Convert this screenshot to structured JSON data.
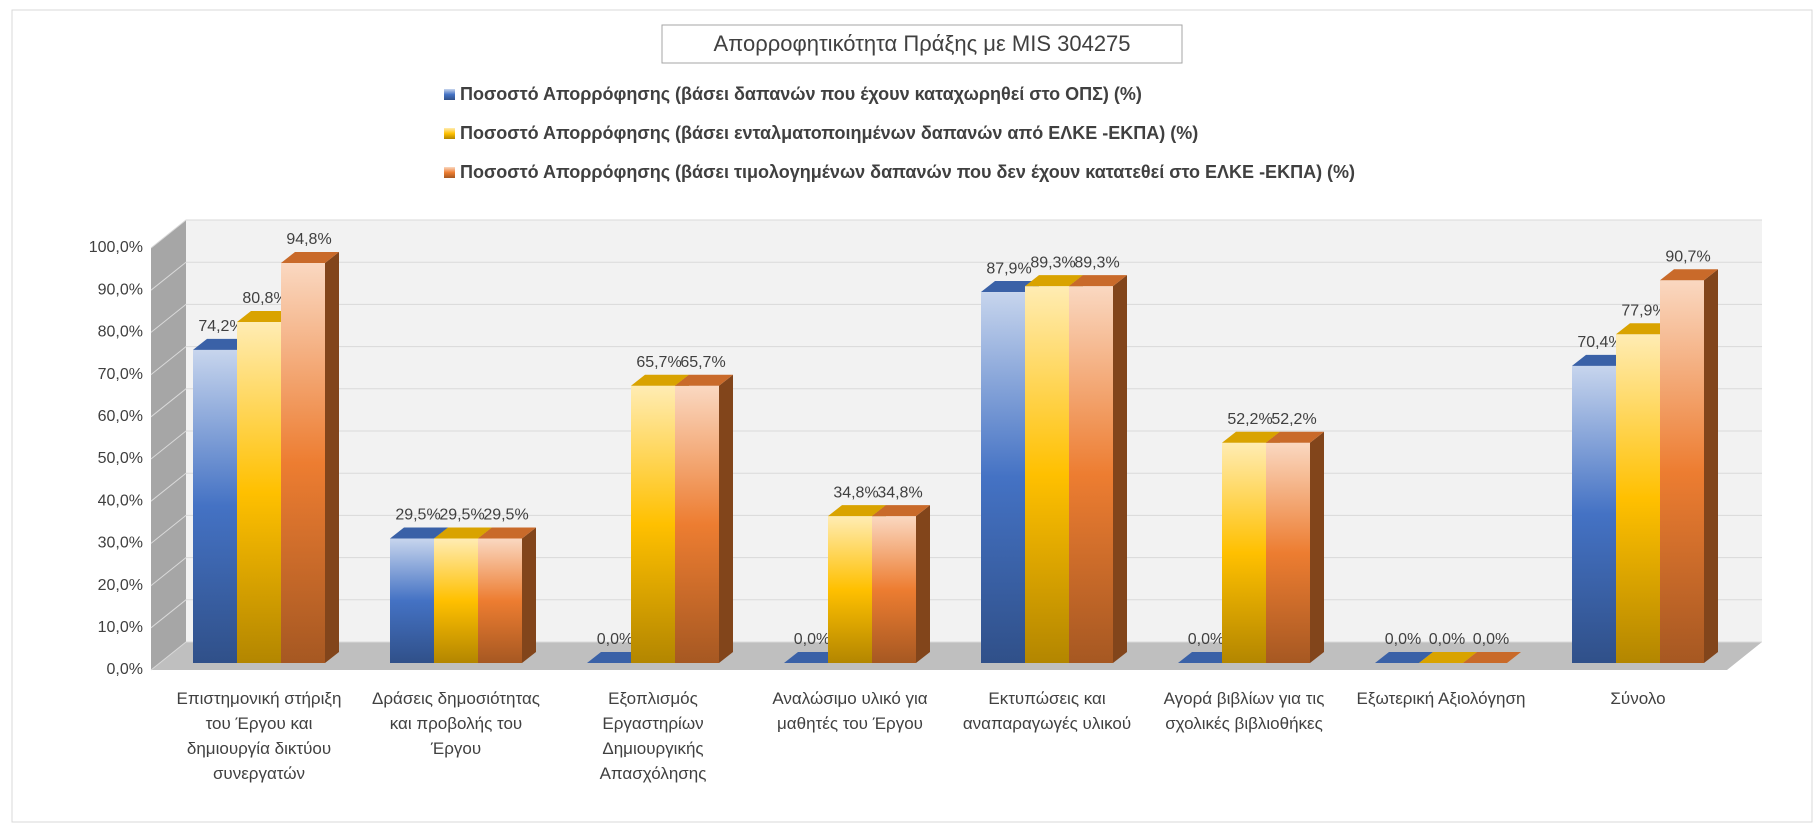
{
  "chart_data": {
    "type": "bar3d",
    "title": "Απορροφητικότητα Πράξης με MIS 304275",
    "categories": [
      "Επιστημονική στήριξη του Έργου και δημιουργία δικτύου συνεργατών",
      "Δράσεις δημοσιότητας και προβολής του Έργου",
      "Εξοπλισμός Εργαστηρίων Δημιουργικής Απασχόλησης",
      "Αναλώσιμο υλικό για μαθητές του Έργου",
      "Εκτυπώσεις και αναπαραγωγές υλικού",
      "Αγορά βιβλίων για τις σχολικές βιβλιοθήκες",
      "Εξωτερική Αξιολόγηση",
      "Σύνολο"
    ],
    "series": [
      {
        "name": "Ποσοστό Απορρόφησης (βάσει δαπανών που έχουν καταχωρηθεί στο ΟΠΣ) (%)",
        "color": "#4472c4",
        "values": [
          74.2,
          29.5,
          0.0,
          0.0,
          87.9,
          0.0,
          0.0,
          70.4
        ],
        "value_labels": [
          "74,2%",
          "29,5%",
          "0,0%",
          "0,0%",
          "87,9%",
          "0,0%",
          "0,0%",
          "70,4%"
        ]
      },
      {
        "name": "Ποσοστό Απορρόφησης (βάσει ενταλματοποιημένων δαπανών από ΕΛΚΕ -ΕΚΠΑ) (%)",
        "color": "#ffc000",
        "values": [
          80.8,
          29.5,
          65.7,
          34.8,
          89.3,
          52.2,
          0.0,
          77.9
        ],
        "value_labels": [
          "80,8%",
          "29,5%",
          "65,7%",
          "34,8%",
          "89,3%",
          "52,2%",
          "0,0%",
          "77,9%"
        ]
      },
      {
        "name": "Ποσοστό Απορρόφησης (βάσει τιμολογημένων δαπανών που δεν έχουν κατατεθεί στο ΕΛΚΕ -ΕΚΠΑ) (%)",
        "color": "#ed7d31",
        "values": [
          94.8,
          29.5,
          65.7,
          34.8,
          89.3,
          52.2,
          0.0,
          90.7
        ],
        "value_labels": [
          "94,8%",
          "29,5%",
          "65,7%",
          "34,8%",
          "89,3%",
          "52,2%",
          "0,0%",
          "90,7%"
        ]
      }
    ],
    "ylim": [
      0,
      100
    ],
    "yticks": [
      {
        "value": 0,
        "label": "0,0%"
      },
      {
        "value": 10,
        "label": "10,0%"
      },
      {
        "value": 20,
        "label": "20,0%"
      },
      {
        "value": 30,
        "label": "30,0%"
      },
      {
        "value": 40,
        "label": "40,0%"
      },
      {
        "value": 50,
        "label": "50,0%"
      },
      {
        "value": 60,
        "label": "60,0%"
      },
      {
        "value": 70,
        "label": "70,0%"
      },
      {
        "value": 80,
        "label": "80,0%"
      },
      {
        "value": 90,
        "label": "90,0%"
      },
      {
        "value": 100,
        "label": "100,0%"
      }
    ],
    "grid": true,
    "legend": "top"
  }
}
